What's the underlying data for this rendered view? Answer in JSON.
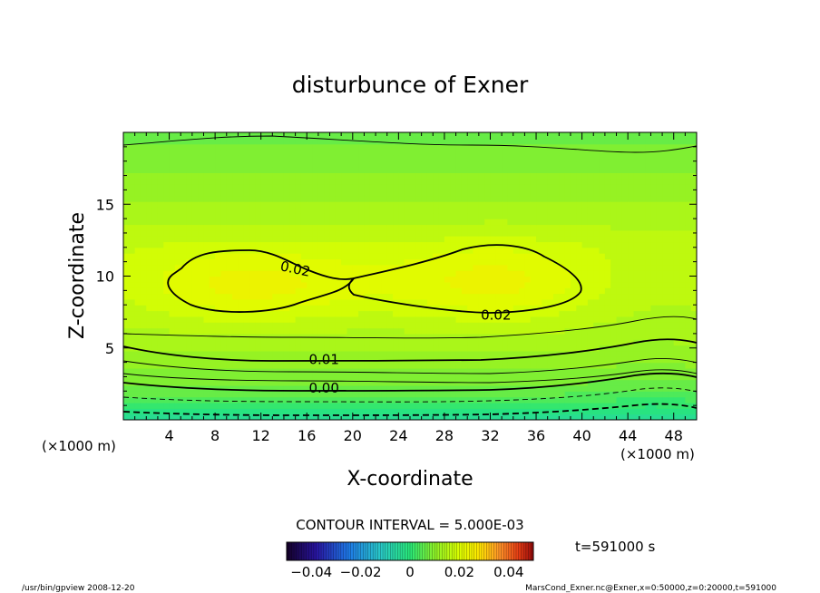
{
  "chart_data": {
    "type": "contour",
    "title": "disturbunce of Exner",
    "xlabel": "X-coordinate",
    "ylabel": "Z-coordinate",
    "x_unit": "(×1000 m)",
    "y_unit": "(×1000 m)",
    "xlim": [
      0,
      50
    ],
    "ylim": [
      0,
      20
    ],
    "x_ticks": [
      4,
      8,
      12,
      16,
      20,
      24,
      28,
      32,
      36,
      40,
      44,
      48
    ],
    "y_ticks": [
      5,
      10,
      15
    ],
    "contour_labels": [
      {
        "text": "0.02",
        "x": 15,
        "z": 10.5
      },
      {
        "text": "0.02",
        "x": 32.5,
        "z": 7.3
      },
      {
        "text": "0.01",
        "x": 17.5,
        "z": 4.2
      },
      {
        "text": "0.00",
        "x": 17.5,
        "z": 2.2
      }
    ],
    "contour_interval_text": "CONTOUR INTERVAL = 5.000E-03",
    "time_text": "t=591000 s",
    "colorbar": {
      "min": -0.05,
      "max": 0.05,
      "tick_values": [
        -0.04,
        -0.02,
        0,
        0.02,
        0.04
      ],
      "tick_labels": [
        "−0.04",
        "−0.02",
        "0",
        "0.02",
        "0.04"
      ]
    },
    "footer_left": "/usr/bin/gpview   2008-12-20",
    "footer_right": "MarsCond_Exner.nc@Exner,x=0:50000,z=0:20000,t=591000"
  }
}
